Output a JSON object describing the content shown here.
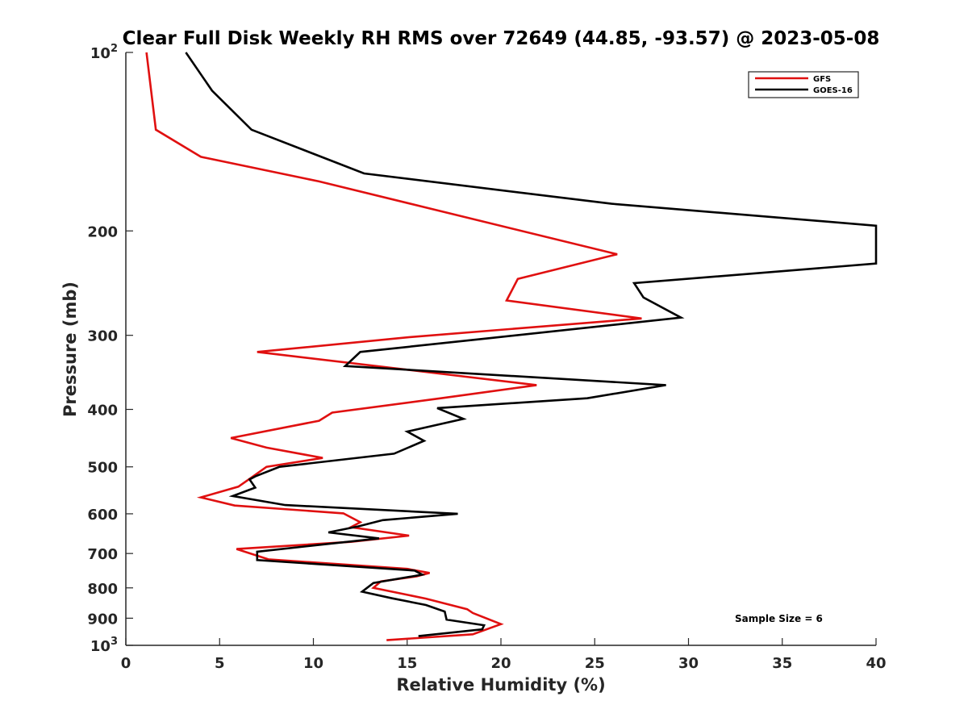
{
  "chart_data": {
    "type": "line",
    "title": "Clear Full Disk Weekly RH RMS over 72649 (44.85, -93.57) @ 2023-05-08",
    "xlabel": "Relative Humidity (%)",
    "ylabel": "Pressure (mb)",
    "xlim": [
      0,
      40
    ],
    "ylim": [
      100,
      1000
    ],
    "y_scale": "log",
    "y_reversed": true,
    "x_ticks": [
      "0",
      "5",
      "10",
      "15",
      "20",
      "25",
      "30",
      "35",
      "40"
    ],
    "y_ticks": [
      {
        "value": 100,
        "base": "10",
        "exp": "2"
      },
      {
        "value": 200,
        "label": "200"
      },
      {
        "value": 300,
        "label": "300"
      },
      {
        "value": 400,
        "label": "400"
      },
      {
        "value": 500,
        "label": "500"
      },
      {
        "value": 600,
        "label": "600"
      },
      {
        "value": 700,
        "label": "700"
      },
      {
        "value": 800,
        "label": "800"
      },
      {
        "value": 900,
        "label": "900"
      },
      {
        "value": 1000,
        "base": "10",
        "exp": "3"
      }
    ],
    "grid": false,
    "legend_position": "top-right",
    "annotation": "Sample Size = 6",
    "series": [
      {
        "name": "GFS",
        "color": "#e01010",
        "points": [
          [
            1.1,
            100
          ],
          [
            1.6,
            135
          ],
          [
            4.0,
            150
          ],
          [
            10.3,
            165
          ],
          [
            26.2,
            219
          ],
          [
            20.9,
            241
          ],
          [
            20.3,
            262
          ],
          [
            27.5,
            281
          ],
          [
            15.2,
            302
          ],
          [
            7.0,
            320
          ],
          [
            21.9,
            364
          ],
          [
            16.8,
            383
          ],
          [
            11.0,
            405
          ],
          [
            10.3,
            418
          ],
          [
            5.6,
            447
          ],
          [
            7.5,
            464
          ],
          [
            10.5,
            483
          ],
          [
            7.5,
            500
          ],
          [
            6.7,
            521
          ],
          [
            6.0,
            540
          ],
          [
            4.0,
            563
          ],
          [
            5.8,
            581
          ],
          [
            11.6,
            599
          ],
          [
            12.5,
            620
          ],
          [
            12.0,
            632
          ],
          [
            15.1,
            653
          ],
          [
            12.0,
            669
          ],
          [
            5.9,
            688
          ],
          [
            7.6,
            716
          ],
          [
            15.0,
            743
          ],
          [
            16.2,
            755
          ],
          [
            15.5,
            765
          ],
          [
            13.6,
            780
          ],
          [
            13.2,
            800
          ],
          [
            16.0,
            834
          ],
          [
            18.2,
            869
          ],
          [
            18.5,
            882
          ],
          [
            20.0,
            921
          ],
          [
            18.5,
            958
          ],
          [
            13.9,
            980
          ]
        ]
      },
      {
        "name": "GOES-16",
        "color": "#000000",
        "points": [
          [
            3.2,
            100
          ],
          [
            4.6,
            116
          ],
          [
            6.7,
            135
          ],
          [
            12.7,
            160
          ],
          [
            25.9,
            180
          ],
          [
            40.0,
            196
          ],
          [
            40.0,
            227
          ],
          [
            27.1,
            245
          ],
          [
            27.6,
            259
          ],
          [
            29.6,
            280
          ],
          [
            19.5,
            303
          ],
          [
            12.5,
            320
          ],
          [
            11.7,
            338
          ],
          [
            28.8,
            364
          ],
          [
            24.6,
            383
          ],
          [
            16.6,
            398
          ],
          [
            18.0,
            415
          ],
          [
            15.0,
            436
          ],
          [
            15.9,
            452
          ],
          [
            14.3,
            475
          ],
          [
            8.2,
            500
          ],
          [
            6.9,
            519
          ],
          [
            6.6,
            525
          ],
          [
            6.9,
            542
          ],
          [
            5.7,
            560
          ],
          [
            8.5,
            580
          ],
          [
            17.7,
            600
          ],
          [
            13.7,
            615
          ],
          [
            12.4,
            630
          ],
          [
            10.8,
            645
          ],
          [
            13.5,
            660
          ],
          [
            7.0,
            695
          ],
          [
            7.0,
            718
          ],
          [
            15.4,
            748
          ],
          [
            15.8,
            760
          ],
          [
            13.2,
            785
          ],
          [
            12.6,
            812
          ],
          [
            14.2,
            833
          ],
          [
            16.0,
            855
          ],
          [
            17.0,
            877
          ],
          [
            17.1,
            905
          ],
          [
            19.1,
            925
          ],
          [
            19.0,
            940
          ],
          [
            15.6,
            965
          ]
        ]
      }
    ]
  }
}
